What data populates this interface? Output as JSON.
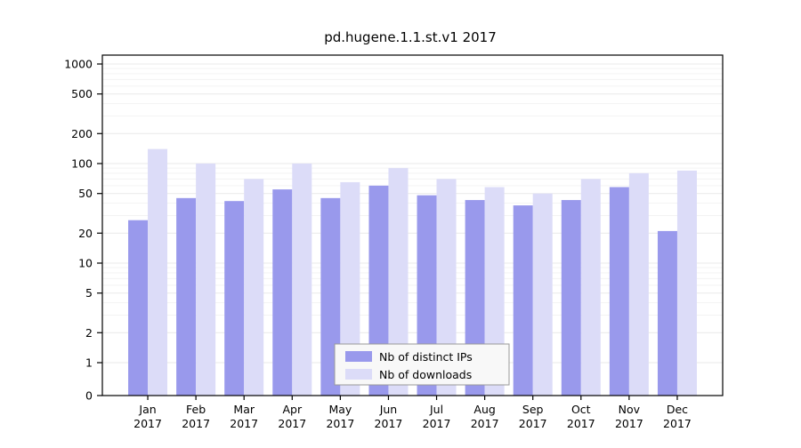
{
  "chart_data": {
    "type": "bar",
    "title": "pd.hugene.1.1.st.v1 2017",
    "categories": [
      "Jan",
      "Feb",
      "Mar",
      "Apr",
      "May",
      "Jun",
      "Jul",
      "Aug",
      "Sep",
      "Oct",
      "Nov",
      "Dec"
    ],
    "year": "2017",
    "series": [
      {
        "name": "Nb of distinct IPs",
        "color": "#9999ec",
        "values": [
          27,
          45,
          42,
          55,
          45,
          60,
          48,
          43,
          38,
          43,
          58,
          21
        ]
      },
      {
        "name": "Nb of downloads",
        "color": "#dcdcf8",
        "values": [
          140,
          100,
          70,
          100,
          65,
          90,
          70,
          58,
          50,
          70,
          80,
          85
        ]
      }
    ],
    "y_ticks": [
      0,
      1,
      2,
      5,
      10,
      20,
      50,
      100,
      200,
      500,
      1000
    ],
    "y_scale": "log",
    "ylim": [
      0,
      1000
    ],
    "grid": true,
    "legend_position": "bottom-center"
  },
  "style": {
    "grid_color": "#e9e9e9",
    "minor_grid_color": "#f3f3f3",
    "axis_color": "#000000",
    "legend_bg": "#f8f8f8",
    "legend_border": "#999999"
  }
}
